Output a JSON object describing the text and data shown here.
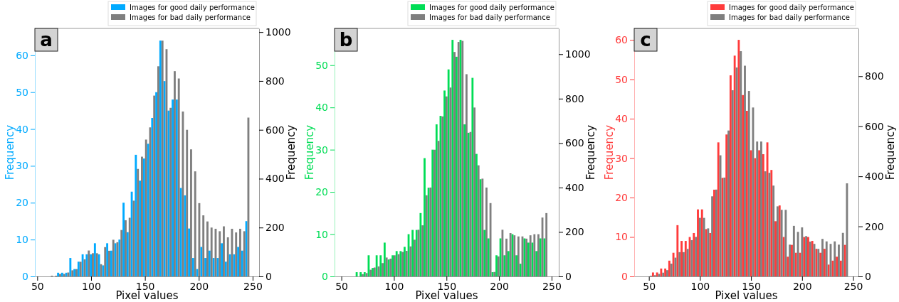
{
  "chart_data": [
    {
      "type": "histogram",
      "annotations": [
        "a"
      ],
      "xlabel": "Pixel values",
      "ylabel": "Frequency",
      "y2label": "Frequency",
      "legend": "top right",
      "bins": [
        57,
        60.8,
        64.6,
        68.4,
        72.2,
        76,
        79.8,
        83.6,
        87.4,
        91.2,
        95,
        98.8,
        102.6,
        106.4,
        110.2,
        114,
        117.8,
        121.6,
        125.4,
        129.2,
        133,
        136.8,
        140.6,
        144.4,
        148.2,
        152,
        155.8,
        159.6,
        163.4,
        167.2,
        171,
        174.8,
        178.6,
        182.4,
        186.2,
        190,
        193.8,
        197.6,
        201.4,
        205.2,
        209,
        212.8,
        216.6,
        220.4,
        224.2,
        228,
        231.8,
        235.6,
        239.4,
        243.2,
        247
      ],
      "xlim": [
        47.8,
        256
      ],
      "xticks": [
        50,
        100,
        150,
        200,
        250
      ],
      "ylim": [
        0,
        67.3
      ],
      "yticks": [
        0,
        10,
        20,
        30,
        40,
        50,
        60
      ],
      "y2lim": [
        0,
        1015
      ],
      "y2ticks": [
        0,
        200,
        400,
        600,
        800,
        1000
      ],
      "series": [
        {
          "name": "Images for good daily performance",
          "color": "#00aaff",
          "values": [
            0,
            0,
            0,
            1,
            1,
            1,
            5,
            2,
            4,
            6,
            6,
            6,
            9,
            6,
            3,
            9,
            7,
            9,
            10,
            20,
            12,
            23,
            33,
            26,
            32,
            36,
            43,
            50,
            64,
            53,
            45,
            48,
            48,
            24,
            22,
            13,
            5,
            2,
            8,
            5,
            7,
            5,
            5,
            9,
            4,
            6,
            6,
            8,
            7,
            15
          ]
        },
        {
          "name": "Images for bad daily performance",
          "color": "#7f7f7f",
          "axis": "y2",
          "values": [
            0,
            3,
            3,
            10,
            10,
            16,
            25,
            30,
            60,
            70,
            106,
            95,
            95,
            50,
            120,
            105,
            150,
            140,
            190,
            230,
            240,
            310,
            440,
            490,
            560,
            610,
            740,
            860,
            965,
            930,
            690,
            840,
            810,
            675,
            600,
            520,
            430,
            300,
            250,
            225,
            200,
            195,
            185,
            205,
            160,
            195,
            180,
            195,
            185,
            650
          ]
        }
      ]
    },
    {
      "type": "histogram",
      "annotations": [
        "b"
      ],
      "xlabel": "Pixel values",
      "ylabel": "Frequency",
      "y2label": "Frequency",
      "legend": "top right",
      "bins": [
        56,
        59.8,
        63.6,
        67.4,
        71.2,
        75,
        78.8,
        82.6,
        86.4,
        90.2,
        94,
        97.8,
        101.6,
        105.4,
        109.2,
        113,
        116.8,
        120.6,
        124.4,
        128.2,
        132,
        135.8,
        139.6,
        143.4,
        147.2,
        151,
        154.8,
        158.6,
        162.4,
        166.2,
        170,
        173.8,
        177.6,
        181.4,
        185.2,
        189,
        192.8,
        196.6,
        200.4,
        204.2,
        208,
        211.8,
        215.6,
        219.4,
        223.2,
        227,
        230.8,
        234.6,
        238.4,
        242.2,
        246
      ],
      "xlim": [
        43.5,
        256.8
      ],
      "xticks": [
        50,
        100,
        150,
        200,
        250
      ],
      "ylim": [
        0,
        58.7
      ],
      "yticks": [
        0,
        10,
        20,
        30,
        40,
        50
      ],
      "y2lim": [
        0,
        1116
      ],
      "y2ticks": [
        0,
        200,
        400,
        600,
        800,
        1000
      ],
      "series": [
        {
          "name": "Images for good daily performance",
          "color": "#00dd55",
          "values": [
            0,
            0,
            1,
            1,
            1,
            5,
            2,
            5,
            5,
            8,
            4,
            5,
            6,
            6,
            7,
            10,
            11,
            11,
            15,
            28,
            21,
            30,
            36,
            38,
            44,
            49,
            56,
            52,
            56,
            36,
            34,
            47,
            29,
            23,
            11,
            9,
            1,
            5,
            9,
            5,
            6,
            10,
            5,
            3,
            9,
            8,
            8,
            6,
            9,
            9
          ]
        },
        {
          "name": "Images for bad daily performance",
          "color": "#7f7f7f",
          "axis": "y2",
          "values": [
            0,
            null,
            null,
            10,
            15,
            30,
            40,
            45,
            60,
            85,
            80,
            95,
            100,
            110,
            115,
            135,
            165,
            210,
            230,
            365,
            400,
            570,
            610,
            720,
            810,
            850,
            1010,
            1055,
            1060,
            910,
            650,
            760,
            500,
            440,
            400,
            330,
            20,
            90,
            210,
            170,
            195,
            185,
            180,
            180,
            170,
            185,
            190,
            190,
            265,
            285
          ]
        }
      ]
    },
    {
      "type": "histogram",
      "annotations": [
        "c"
      ],
      "xlabel": "Pixel values",
      "ylabel": "Frequency",
      "y2label": "Frequency",
      "legend": "top right",
      "bins": [
        45,
        49,
        53,
        57,
        61,
        65,
        69,
        73,
        77,
        81,
        85,
        89,
        93,
        97,
        101,
        105,
        109,
        113,
        117,
        121,
        125,
        129,
        133,
        137,
        141,
        145,
        149,
        153,
        157,
        161,
        165,
        169,
        173,
        177,
        181,
        185,
        189,
        193,
        197,
        201,
        205,
        209,
        213,
        217,
        221,
        225,
        229,
        233,
        237,
        241,
        245
      ],
      "xlim": [
        35.6,
        255.2
      ],
      "xticks": [
        50,
        100,
        150,
        200,
        250
      ],
      "ylim": [
        0,
        62.9
      ],
      "yticks": [
        0,
        10,
        20,
        30,
        40,
        50,
        60
      ],
      "y2lim": [
        0,
        991
      ],
      "y2ticks": [
        0,
        200,
        400,
        600,
        800
      ],
      "series": [
        {
          "name": "Images for good daily performance",
          "color": "#ff3b3b",
          "values": [
            0,
            0,
            1,
            1,
            2,
            2,
            4,
            6,
            13,
            9,
            9,
            10,
            11,
            17,
            17,
            12,
            11,
            22,
            34,
            25,
            36,
            51,
            56,
            60,
            46,
            42,
            32,
            30,
            32,
            31,
            34,
            27,
            14,
            18,
            10,
            5,
            8,
            6,
            6,
            10,
            10,
            9,
            7,
            6,
            7,
            3,
            4,
            5,
            4,
            8
          ]
        },
        {
          "name": "Images for bad daily performance",
          "color": "#7f7f7f",
          "axis": "y2",
          "values": [
            null,
            3,
            5,
            10,
            15,
            25,
            51,
            75,
            97,
            97,
            110,
            145,
            158,
            234,
            234,
            192,
            320,
            347,
            484,
            395,
            583,
            744,
            835,
            900,
            842,
            741,
            675,
            539,
            539,
            420,
            414,
            363,
            280,
            266,
            266,
            127,
            202,
            178,
            196,
            161,
            139,
            130,
            110,
            150,
            140,
            130,
            140,
            127,
            174,
            372
          ]
        }
      ]
    }
  ]
}
